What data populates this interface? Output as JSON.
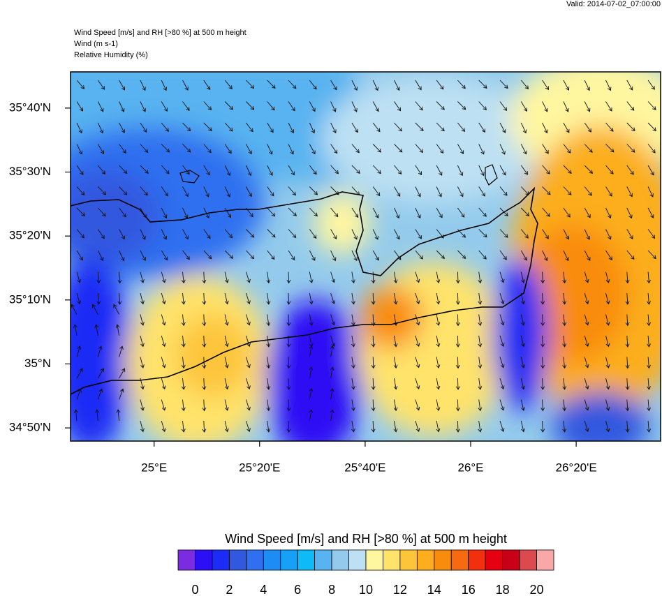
{
  "valid": "Valid: 2014-07-02_07:00:00",
  "header": {
    "lines": [
      "Wind Speed [m/s] and RH [>80 %] at 500 m height",
      "Wind   (m s-1)",
      "Relative Humidity   (%)"
    ]
  },
  "map": {
    "lat_range": [
      34.799,
      35.761
    ],
    "lon_range": [
      24.736,
      26.6
    ],
    "lat_ticks": [
      {
        "value": 34.8333,
        "label": "34°50'N"
      },
      {
        "value": 35,
        "label": "35°N"
      },
      {
        "value": 35.1667,
        "label": "35°10'N"
      },
      {
        "value": 35.3333,
        "label": "35°20'N"
      },
      {
        "value": 35.5,
        "label": "35°30'N"
      },
      {
        "value": 35.6667,
        "label": "35°40'N"
      }
    ],
    "lon_ticks": [
      {
        "value": 25,
        "label": "25°E"
      },
      {
        "value": 25.3333,
        "label": "25°20'E"
      },
      {
        "value": 25.6667,
        "label": "25°40'E"
      },
      {
        "value": 26,
        "label": "26°E"
      },
      {
        "value": 26.3333,
        "label": "26°20'E"
      }
    ]
  },
  "colorbar": {
    "title": "Wind Speed [m/s] and RH [>80 %] at 500 m height",
    "range": [
      -1,
      21
    ],
    "colors": [
      "#7b2be0",
      "#2d0ff5",
      "#1a2cf5",
      "#3358e0",
      "#2f6ff0",
      "#1e8cf5",
      "#16a0f7",
      "#0fbaf8",
      "#58b3f0",
      "#94cbec",
      "#bde0f3",
      "#fff6a0",
      "#ffe36a",
      "#fdc53a",
      "#fcae1e",
      "#f98c0c",
      "#f76a10",
      "#f3300e",
      "#e50012",
      "#c80018",
      "#dc4a50",
      "#f9a8a8"
    ],
    "ticks": [
      0,
      2,
      4,
      6,
      8,
      10,
      12,
      14,
      16,
      18,
      20
    ]
  }
}
